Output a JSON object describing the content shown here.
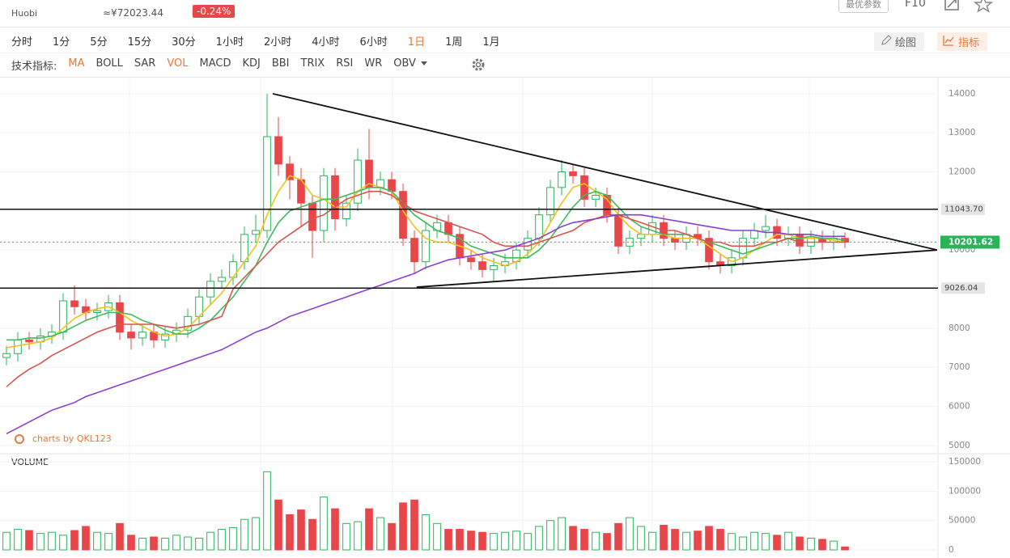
{
  "header": {
    "exchange": "Huobi",
    "cny_price": "≈¥72023.44",
    "change": "-0.24%",
    "button": "最优参数",
    "f10": "F10"
  },
  "toolbar": {
    "intervals": [
      "分时",
      "1分",
      "5分",
      "15分",
      "30分",
      "1小时",
      "2小时",
      "4小时",
      "6小时",
      "1日",
      "1周",
      "1月"
    ],
    "active": 9,
    "indicator_label": "技术指标:",
    "indicators": [
      "MA",
      "BOLL",
      "SAR",
      "VOL",
      "MACD",
      "KDJ",
      "BBI",
      "TRIX",
      "RSI",
      "WR",
      "OBV"
    ],
    "active_indicators": [
      0,
      3
    ],
    "draw": "绘图",
    "indicator_button": "指标"
  },
  "chart_data": {
    "type": "candlestick",
    "colors": {
      "up": "#2bb35a",
      "down": "#e8474a"
    },
    "xlim": [
      -0.5,
      82.14
    ],
    "ylim": [
      4810,
      14390
    ],
    "yticks": [
      5000,
      6000,
      7000,
      8000,
      9000,
      10000,
      11000,
      12000,
      13000,
      14000
    ],
    "volume_ylim": [
      0,
      150000
    ],
    "volume_yticks": [
      0,
      50000,
      100000,
      150000
    ],
    "volume_label": "VOLUME",
    "watermark": "charts by QKL123",
    "open": [
      7250,
      7350,
      7700,
      7650,
      7800,
      7900,
      8700,
      8550,
      8400,
      8450,
      8650,
      7900,
      7750,
      7900,
      7700,
      7850,
      7950,
      8300,
      8800,
      9200,
      9300,
      9700,
      10400,
      10500,
      12900,
      12200,
      11800,
      11200,
      10500,
      11900,
      10800,
      11200,
      12300,
      11600,
      11800,
      11500,
      10300,
      9700,
      10500,
      10700,
      10400,
      9800,
      9700,
      9500,
      9600,
      9700,
      10000,
      10300,
      10900,
      11600,
      12000,
      11900,
      11300,
      11400,
      10900,
      10100,
      10300,
      10400,
      10700,
      10300,
      10200,
      10400,
      10300,
      9700,
      9600,
      9800,
      10300,
      10500,
      10600,
      10300,
      10400,
      10100,
      10300,
      10200,
      10300
    ],
    "high": [
      7550,
      7900,
      7900,
      8000,
      8100,
      8900,
      9100,
      8750,
      8650,
      8850,
      8850,
      8100,
      8100,
      8100,
      8050,
      8150,
      8500,
      9000,
      9400,
      9500,
      9900,
      10600,
      10900,
      14000,
      13400,
      12400,
      12100,
      11400,
      12100,
      12100,
      11400,
      12600,
      13100,
      12000,
      12000,
      11700,
      10500,
      10700,
      10900,
      10900,
      10600,
      10000,
      9900,
      9800,
      9900,
      10200,
      10500,
      11100,
      11800,
      12300,
      12200,
      12100,
      11600,
      11600,
      11100,
      10500,
      10600,
      10900,
      10900,
      10500,
      10600,
      10600,
      10500,
      9900,
      10000,
      10500,
      10700,
      10900,
      10800,
      10600,
      10600,
      10500,
      10500,
      10500,
      10450
    ],
    "low": [
      7050,
      7150,
      7450,
      7450,
      7600,
      7700,
      8350,
      8200,
      8200,
      8250,
      7700,
      7450,
      7550,
      7500,
      7500,
      7650,
      7750,
      8100,
      8600,
      9000,
      9100,
      9500,
      10200,
      10300,
      11900,
      11300,
      10600,
      9800,
      10200,
      10500,
      10600,
      11000,
      11300,
      11400,
      11300,
      10100,
      9400,
      9500,
      10300,
      10200,
      9600,
      9500,
      9300,
      9200,
      9400,
      9500,
      9800,
      10100,
      10700,
      11400,
      11700,
      11100,
      11100,
      10700,
      9900,
      9900,
      10100,
      10200,
      10100,
      10000,
      10000,
      10100,
      9500,
      9400,
      9400,
      9600,
      10100,
      10300,
      10100,
      10100,
      9900,
      9900,
      10000,
      10000,
      10050
    ],
    "close": [
      7350,
      7700,
      7650,
      7800,
      7900,
      8700,
      8550,
      8400,
      8450,
      8650,
      7900,
      7750,
      7900,
      7700,
      7850,
      7950,
      8300,
      8800,
      9200,
      9300,
      9700,
      10400,
      10500,
      12900,
      12200,
      11800,
      11200,
      10500,
      11900,
      10800,
      11200,
      12300,
      11600,
      11800,
      11500,
      10300,
      9700,
      10500,
      10700,
      10400,
      9800,
      9700,
      9500,
      9600,
      9700,
      10000,
      10300,
      10900,
      11600,
      12000,
      11900,
      11300,
      11400,
      10900,
      10100,
      10300,
      10400,
      10700,
      10300,
      10200,
      10400,
      10300,
      9700,
      9600,
      9800,
      10300,
      10500,
      10600,
      10300,
      10400,
      10100,
      10300,
      10200,
      10300,
      10200
    ],
    "volume": [
      30000,
      35000,
      33000,
      28000,
      30000,
      25000,
      33000,
      40000,
      30000,
      28000,
      45000,
      25000,
      20000,
      22000,
      20000,
      25000,
      22000,
      20000,
      30000,
      35000,
      38000,
      52000,
      55000,
      133000,
      85000,
      60000,
      68000,
      52000,
      90000,
      70000,
      45000,
      48000,
      70000,
      55000,
      45000,
      80000,
      85000,
      60000,
      45000,
      35000,
      35000,
      32000,
      30000,
      28000,
      30000,
      32000,
      28000,
      40000,
      50000,
      55000,
      40000,
      35000,
      30000,
      28000,
      45000,
      55000,
      40000,
      30000,
      42000,
      35000,
      30000,
      32000,
      40000,
      35000,
      28000,
      22000,
      30000,
      28000,
      25000,
      30000,
      22000,
      20000,
      18000,
      15000,
      5000
    ],
    "lines": [
      {
        "color": "#f2c21b",
        "values": [
          7500,
          7550,
          7600,
          7650,
          7750,
          8000,
          8250,
          8400,
          8500,
          8550,
          8400,
          8200,
          8050,
          7900,
          7800,
          7850,
          8000,
          8300,
          8600,
          8900,
          9300,
          9700,
          10100,
          10900,
          11500,
          11900,
          11800,
          11400,
          11300,
          11100,
          11100,
          11500,
          11700,
          11600,
          11500,
          11000,
          10600,
          10300,
          10200,
          10200,
          10100,
          10000,
          9800,
          9700,
          9600,
          9700,
          9900,
          10200,
          10700,
          11200,
          11600,
          11700,
          11500,
          11300,
          10900,
          10600,
          10400,
          10400,
          10400,
          10300,
          10300,
          10300,
          10100,
          9900,
          9700,
          9800,
          10000,
          10200,
          10400,
          10400,
          10300,
          10300,
          10300,
          10250,
          10200
        ]
      },
      {
        "color": "#3dbb5a",
        "values": [
          7700,
          7700,
          7750,
          7750,
          7800,
          7900,
          8050,
          8200,
          8300,
          8400,
          8400,
          8350,
          8200,
          8100,
          7950,
          7850,
          7850,
          8000,
          8200,
          8500,
          8800,
          9200,
          9600,
          10200,
          10700,
          11000,
          11100,
          11200,
          11300,
          11300,
          11400,
          11500,
          11600,
          11600,
          11500,
          11200,
          10900,
          10700,
          10500,
          10400,
          10300,
          10100,
          10000,
          9900,
          9800,
          9800,
          9800,
          10000,
          10300,
          10700,
          11100,
          11400,
          11500,
          11400,
          11100,
          10800,
          10600,
          10500,
          10400,
          10400,
          10400,
          10300,
          10200,
          10100,
          10000,
          9900,
          10000,
          10100,
          10200,
          10300,
          10300,
          10350,
          10300,
          10300,
          10250
        ]
      },
      {
        "color": "#d9534f",
        "values": [
          6500,
          6750,
          6950,
          7100,
          7300,
          7450,
          7600,
          7750,
          7900,
          8000,
          8100,
          8100,
          8100,
          8100,
          8050,
          8000,
          8050,
          8100,
          8200,
          8300,
          9000,
          9300,
          9600,
          9900,
          10200,
          10400,
          10600,
          10800,
          10900,
          11100,
          11300,
          11400,
          11500,
          11500,
          11400,
          11200,
          11000,
          10900,
          10800,
          10700,
          10600,
          10500,
          10400,
          10200,
          10100,
          10100,
          10100,
          10200,
          10300,
          10400,
          10500,
          10700,
          10800,
          10900,
          10900,
          10800,
          10700,
          10600,
          10500,
          10500,
          10400,
          10300,
          10200,
          10200,
          10100,
          10100,
          10100,
          10200,
          10200,
          10300,
          10200,
          10200,
          10200,
          10200,
          10200
        ]
      },
      {
        "color": "#8a3fd1",
        "values": [
          5300,
          5450,
          5600,
          5750,
          5900,
          6000,
          6100,
          6250,
          6350,
          6450,
          6550,
          6650,
          6750,
          6850,
          6950,
          7050,
          7150,
          7250,
          7350,
          7450,
          7600,
          7750,
          7900,
          8000,
          8150,
          8300,
          8400,
          8500,
          8600,
          8700,
          8800,
          8900,
          9000,
          9100,
          9200,
          9300,
          9400,
          9550,
          9650,
          9750,
          9800,
          9850,
          9900,
          9950,
          10000,
          10100,
          10200,
          10300,
          10450,
          10600,
          10700,
          10750,
          10800,
          10850,
          10900,
          10900,
          10900,
          10850,
          10800,
          10750,
          10700,
          10650,
          10600,
          10550,
          10500,
          10500,
          10500,
          10450,
          10450,
          10400,
          10400,
          10400,
          10350,
          10350,
          10350
        ]
      }
    ],
    "levels": [
      {
        "value": 11043.7,
        "label": "11043.70"
      },
      {
        "value": 9026.04,
        "label": "9026.04"
      }
    ],
    "last_price": {
      "value": 10201.62,
      "label": "10201.62"
    },
    "trendlines": [
      [
        [
          23.5,
          14000
        ],
        [
          82.14,
          10000
        ]
      ],
      [
        [
          36.2,
          9050
        ],
        [
          82.14,
          10000
        ]
      ]
    ]
  }
}
